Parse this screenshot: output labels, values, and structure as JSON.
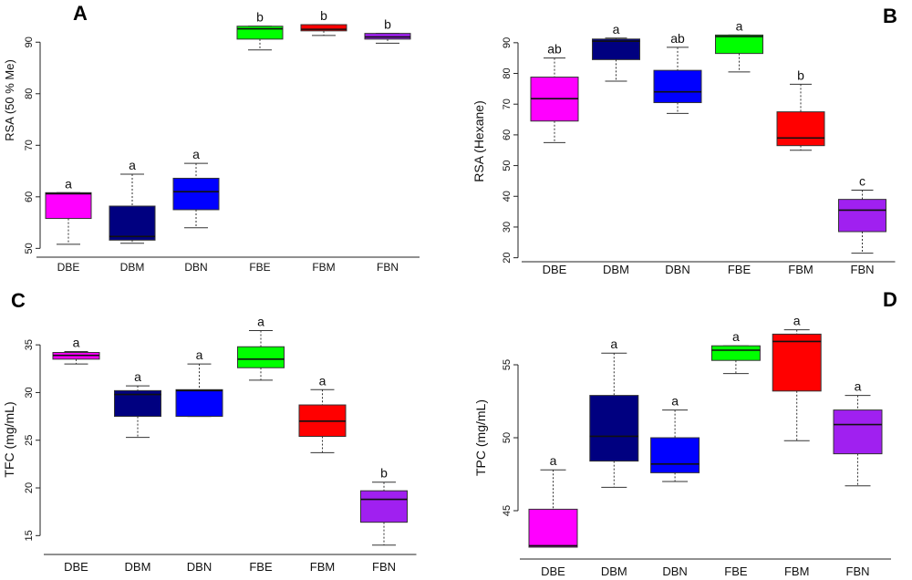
{
  "chart_data": [
    {
      "panel": "A",
      "type": "box",
      "ylabel": "RSA (50 % Me)",
      "ylim": [
        49,
        95
      ],
      "yticks": [
        50,
        60,
        70,
        80,
        90
      ],
      "categories": [
        "DBE",
        "DBM",
        "DBN",
        "FBE",
        "FBM",
        "FBN"
      ],
      "colors": [
        "#ff00ff",
        "#000080",
        "#0000ff",
        "#00ff00",
        "#ff0000",
        "#a020f0"
      ],
      "boxes": [
        {
          "min": 50.8,
          "q1": 55.8,
          "median": 60.6,
          "q3": 60.8,
          "max": 60.8,
          "letter": "a"
        },
        {
          "min": 51.0,
          "q1": 51.6,
          "median": 52.3,
          "q3": 58.2,
          "max": 64.4,
          "letter": "a"
        },
        {
          "min": 54.0,
          "q1": 57.5,
          "median": 61.0,
          "q3": 63.6,
          "max": 66.5,
          "letter": "a"
        },
        {
          "min": 88.5,
          "q1": 90.6,
          "median": 92.6,
          "q3": 93.1,
          "max": 93.1,
          "letter": "b"
        },
        {
          "min": 91.3,
          "q1": 92.2,
          "median": 92.5,
          "q3": 93.4,
          "max": 93.4,
          "letter": "b"
        },
        {
          "min": 89.8,
          "q1": 90.6,
          "median": 91.0,
          "q3": 91.7,
          "max": 91.7,
          "letter": "b"
        }
      ]
    },
    {
      "panel": "B",
      "type": "box",
      "ylabel": "RSA (Hexane)",
      "ylim": [
        19,
        95
      ],
      "yticks": [
        20,
        30,
        40,
        50,
        60,
        70,
        80,
        90
      ],
      "categories": [
        "DBE",
        "DBM",
        "DBN",
        "FBE",
        "FBM",
        "FBN"
      ],
      "colors": [
        "#ff00ff",
        "#000080",
        "#0000ff",
        "#00ff00",
        "#ff0000",
        "#a020f0"
      ],
      "boxes": [
        {
          "min": 57.5,
          "q1": 64.5,
          "median": 71.8,
          "q3": 78.8,
          "max": 85.0,
          "letter": "ab"
        },
        {
          "min": 77.5,
          "q1": 84.5,
          "median": 90.5,
          "q3": 91.2,
          "max": 91.5,
          "letter": "a"
        },
        {
          "min": 67.0,
          "q1": 70.5,
          "median": 74.0,
          "q3": 81.0,
          "max": 88.5,
          "letter": "ab"
        },
        {
          "min": 80.5,
          "q1": 86.5,
          "median": 92.0,
          "q3": 92.5,
          "max": 92.5,
          "letter": "a"
        },
        {
          "min": 55.0,
          "q1": 56.5,
          "median": 59.0,
          "q3": 67.5,
          "max": 76.5,
          "letter": "b"
        },
        {
          "min": 21.5,
          "q1": 28.5,
          "median": 35.5,
          "q3": 39.0,
          "max": 42.0,
          "letter": "c"
        }
      ]
    },
    {
      "panel": "C",
      "type": "box",
      "ylabel": "TFC (mg/mL)",
      "ylim": [
        13.5,
        37.5
      ],
      "yticks": [
        15,
        20,
        25,
        30,
        35
      ],
      "categories": [
        "DBE",
        "DBM",
        "DBN",
        "FBE",
        "FBM",
        "FBN"
      ],
      "colors": [
        "#ff00ff",
        "#000080",
        "#0000ff",
        "#00ff00",
        "#ff0000",
        "#a020f0"
      ],
      "boxes": [
        {
          "min": 33.0,
          "q1": 33.5,
          "median": 33.9,
          "q3": 34.2,
          "max": 34.3,
          "letter": "a"
        },
        {
          "min": 25.3,
          "q1": 27.5,
          "median": 29.8,
          "q3": 30.2,
          "max": 30.7,
          "letter": "a"
        },
        {
          "min": 27.5,
          "q1": 27.5,
          "median": 30.2,
          "q3": 30.3,
          "max": 33.0,
          "letter": "a"
        },
        {
          "min": 31.3,
          "q1": 32.6,
          "median": 33.5,
          "q3": 34.8,
          "max": 36.5,
          "letter": "a"
        },
        {
          "min": 23.7,
          "q1": 25.4,
          "median": 27.0,
          "q3": 28.7,
          "max": 30.3,
          "letter": "a"
        },
        {
          "min": 14.0,
          "q1": 16.4,
          "median": 18.8,
          "q3": 19.7,
          "max": 20.6,
          "letter": "b"
        }
      ]
    },
    {
      "panel": "D",
      "type": "box",
      "ylabel": "TPC (mg/mL)",
      "ylim": [
        42,
        58
      ],
      "yticks": [
        45,
        50,
        55
      ],
      "categories": [
        "DBE",
        "DBM",
        "DBN",
        "FBE",
        "FBM",
        "FBN"
      ],
      "colors": [
        "#ff00ff",
        "#000080",
        "#0000ff",
        "#00ff00",
        "#ff0000",
        "#a020f0"
      ],
      "boxes": [
        {
          "min": 42.5,
          "q1": 42.5,
          "median": 42.6,
          "q3": 45.1,
          "max": 47.8,
          "letter": "a"
        },
        {
          "min": 46.6,
          "q1": 48.4,
          "median": 50.1,
          "q3": 52.9,
          "max": 55.8,
          "letter": "a"
        },
        {
          "min": 47.0,
          "q1": 47.6,
          "median": 48.2,
          "q3": 50.0,
          "max": 51.9,
          "letter": "a"
        },
        {
          "min": 54.4,
          "q1": 55.3,
          "median": 56.0,
          "q3": 56.3,
          "max": 56.3,
          "letter": "a"
        },
        {
          "min": 49.8,
          "q1": 53.2,
          "median": 56.6,
          "q3": 57.1,
          "max": 57.4,
          "letter": "a"
        },
        {
          "min": 46.7,
          "q1": 48.9,
          "median": 50.9,
          "q3": 51.9,
          "max": 52.9,
          "letter": "a"
        }
      ]
    }
  ]
}
